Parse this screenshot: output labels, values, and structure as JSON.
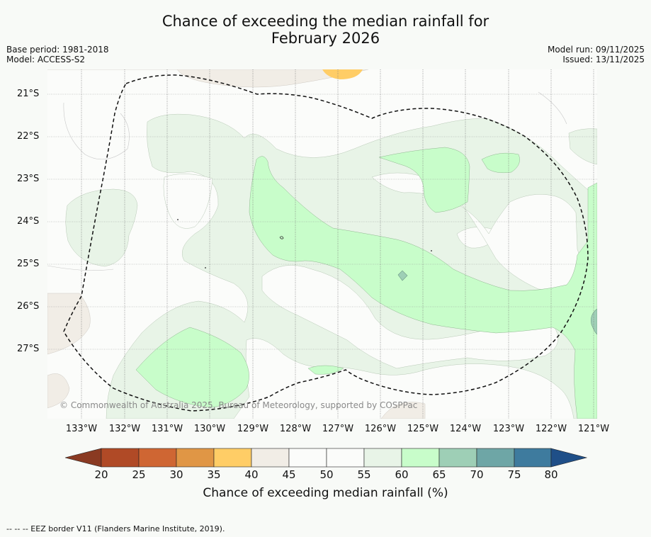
{
  "title_line1": "Chance of exceeding the median rainfall for",
  "title_line2": "February 2026",
  "base_period": "Base period: 1981-2018",
  "model": "Model: ACCESS-S2",
  "model_run": "Model run: 09/11/2025",
  "issued": "Issued: 13/11/2025",
  "copyright": "© Commonwealth of Australia 2025, Bureau of Meteorology, supported by COSPPac",
  "lat_labels": [
    "21°S",
    "22°S",
    "23°S",
    "24°S",
    "25°S",
    "26°S",
    "27°S"
  ],
  "lon_labels": [
    "133°W",
    "132°W",
    "131°W",
    "130°W",
    "129°W",
    "128°W",
    "127°W",
    "126°W",
    "125°W",
    "124°W",
    "123°W",
    "122°W",
    "121°W"
  ],
  "colorbar": {
    "title": "Chance of exceeding median rainfall (%)",
    "ticks": [
      "20",
      "25",
      "30",
      "35",
      "40",
      "45",
      "50",
      "55",
      "60",
      "65",
      "70",
      "75",
      "80"
    ],
    "colors": {
      "below_20": "#8a3a22",
      "20_25": "#b04a26",
      "25_30": "#cf6633",
      "30_35": "#e09645",
      "35_40": "#ffcd66",
      "40_45": "#f1ede6",
      "45_50": "#fbfcfa",
      "50_55": "#fbfcfa",
      "55_60": "#e8f4e7",
      "60_65": "#c8fdca",
      "65_70": "#9ecfb6",
      "70_75": "#6ea6a6",
      "75_80": "#3e7b9e",
      "above_80": "#1f4f88"
    }
  },
  "footnote": "--  --  -- EEZ border V11 (Flanders Marine Institute, 2019)."
}
